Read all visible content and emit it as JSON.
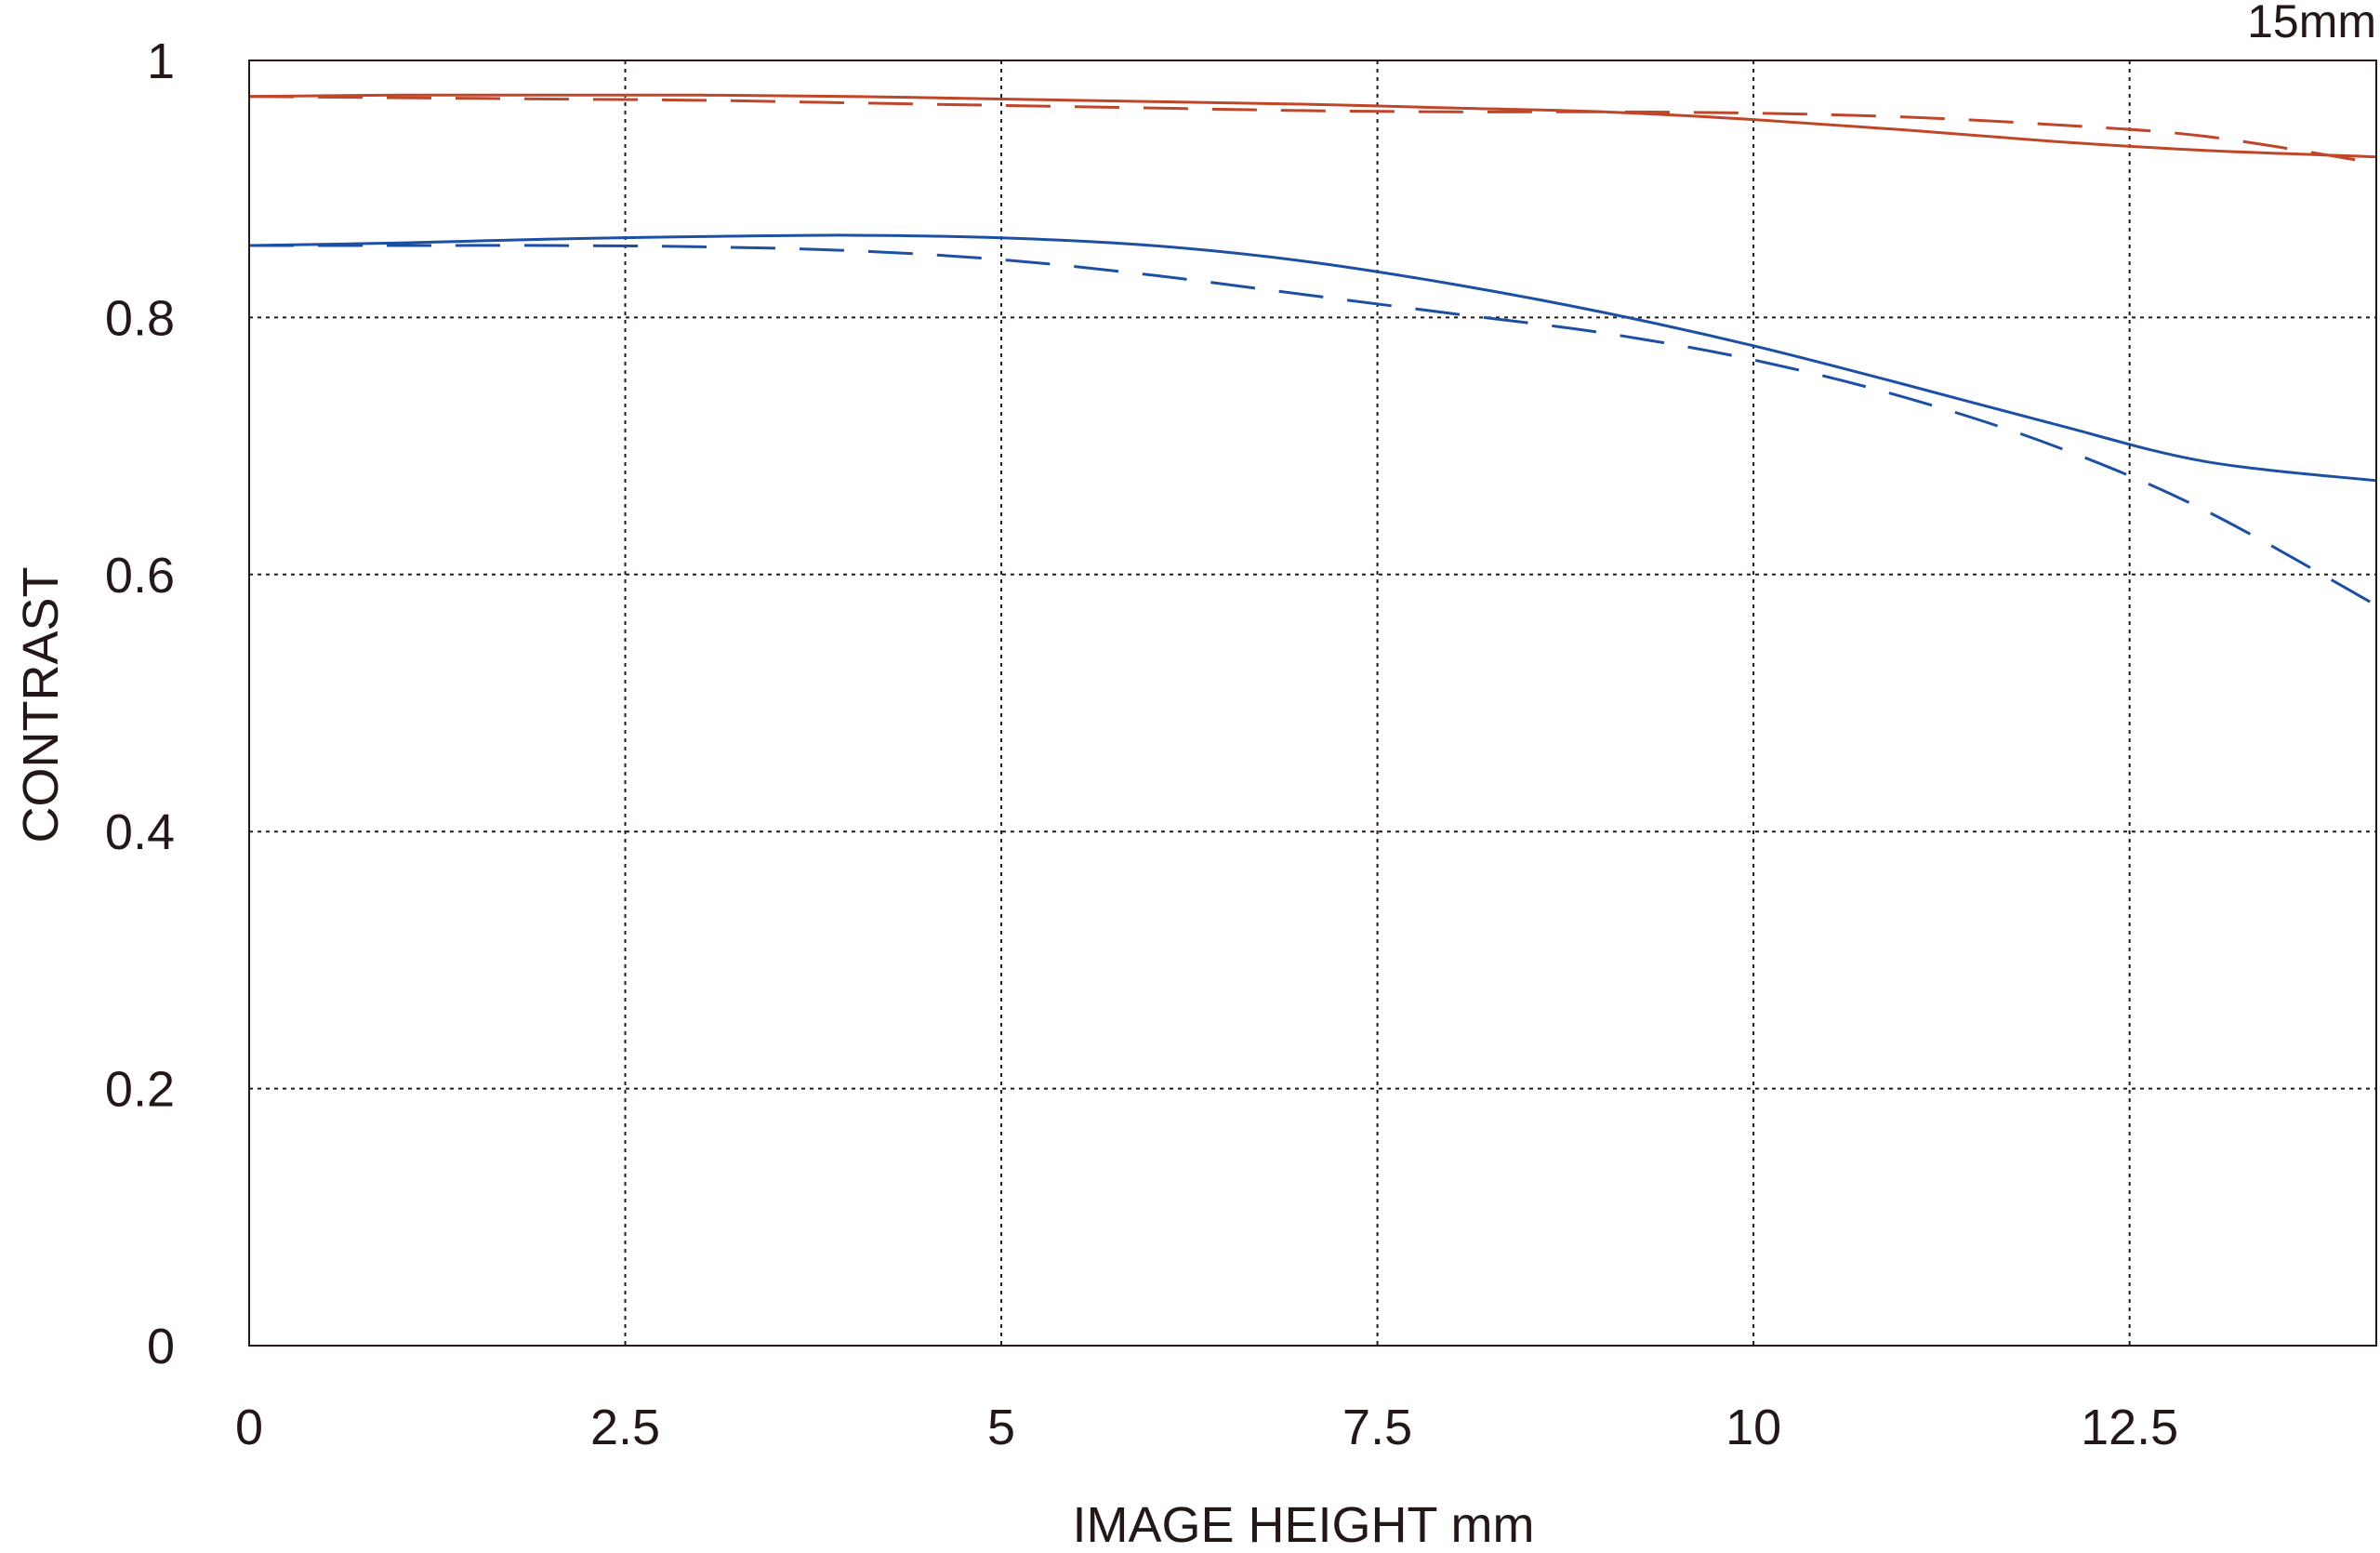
{
  "chart_data": {
    "type": "line",
    "corner_label": "15mm",
    "xlabel": "IMAGE HEIGHT  mm",
    "ylabel": "CONTRAST",
    "xlim": [
      0,
      14.14
    ],
    "ylim": [
      0,
      1
    ],
    "x_ticks": [
      0,
      2.5,
      5,
      7.5,
      10,
      12.5
    ],
    "x_tick_labels": [
      "0",
      "2.5",
      "5",
      "7.5",
      "10",
      "12.5"
    ],
    "y_ticks": [
      0,
      0.2,
      0.4,
      0.6,
      0.8,
      1
    ],
    "y_tick_labels": [
      "0",
      "0.2",
      "0.4",
      "0.6",
      "0.8",
      "1"
    ],
    "grid": true,
    "grid_style": "dotted",
    "series": [
      {
        "color": "#c0462a",
        "dash": "solid",
        "points": [
          [
            0,
            0.972
          ],
          [
            1,
            0.973
          ],
          [
            2,
            0.973
          ],
          [
            3,
            0.973
          ],
          [
            4,
            0.972
          ],
          [
            5,
            0.97
          ],
          [
            6,
            0.968
          ],
          [
            7,
            0.966
          ],
          [
            8,
            0.963
          ],
          [
            9,
            0.96
          ],
          [
            10,
            0.954
          ],
          [
            11,
            0.946
          ],
          [
            12,
            0.937
          ],
          [
            13,
            0.93
          ],
          [
            14.14,
            0.925
          ]
        ]
      },
      {
        "color": "#c0462a",
        "dash": "dashed",
        "points": [
          [
            0,
            0.972
          ],
          [
            1,
            0.971
          ],
          [
            2,
            0.97
          ],
          [
            3,
            0.969
          ],
          [
            4,
            0.967
          ],
          [
            5,
            0.965
          ],
          [
            6,
            0.963
          ],
          [
            7,
            0.961
          ],
          [
            8,
            0.96
          ],
          [
            9,
            0.96
          ],
          [
            10,
            0.959
          ],
          [
            11,
            0.956
          ],
          [
            12,
            0.95
          ],
          [
            13,
            0.941
          ],
          [
            14.14,
            0.92
          ]
        ]
      },
      {
        "color": "#1d50a2",
        "dash": "solid",
        "points": [
          [
            0,
            0.856
          ],
          [
            1,
            0.858
          ],
          [
            2,
            0.861
          ],
          [
            3,
            0.863
          ],
          [
            4,
            0.864
          ],
          [
            5,
            0.862
          ],
          [
            6,
            0.856
          ],
          [
            7,
            0.844
          ],
          [
            8,
            0.826
          ],
          [
            9,
            0.804
          ],
          [
            10,
            0.778
          ],
          [
            11,
            0.748
          ],
          [
            12,
            0.717
          ],
          [
            13,
            0.688
          ],
          [
            14.14,
            0.673
          ]
        ]
      },
      {
        "color": "#1d50a2",
        "dash": "dashed",
        "points": [
          [
            0,
            0.856
          ],
          [
            1,
            0.856
          ],
          [
            2,
            0.856
          ],
          [
            3,
            0.855
          ],
          [
            4,
            0.852
          ],
          [
            5,
            0.845
          ],
          [
            6,
            0.833
          ],
          [
            7,
            0.818
          ],
          [
            8,
            0.803
          ],
          [
            9,
            0.788
          ],
          [
            10,
            0.767
          ],
          [
            11,
            0.738
          ],
          [
            12,
            0.7
          ],
          [
            13,
            0.65
          ],
          [
            14.14,
            0.576
          ]
        ]
      }
    ]
  }
}
